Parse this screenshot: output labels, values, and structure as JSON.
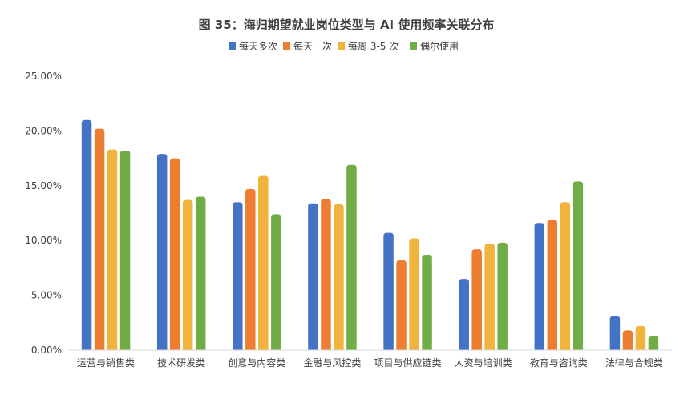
{
  "chart_data": {
    "type": "bar",
    "title": "图 35：海归期望就业岗位类型与 AI 使用频率关联分布",
    "xlabel": "",
    "ylabel": "",
    "categories": [
      "运营与销售类",
      "技术研发类",
      "创意与内容类",
      "金融与风控类",
      "项目与供应链类",
      "人资与培训类",
      "教育与咨询类",
      "法律与合规类"
    ],
    "series": [
      {
        "name": "每天多次",
        "color": "#4472C4",
        "values": [
          21.0,
          17.9,
          13.5,
          13.4,
          10.7,
          6.5,
          11.6,
          3.1
        ]
      },
      {
        "name": "每天一次",
        "color": "#ED7D31",
        "values": [
          20.2,
          17.5,
          14.7,
          13.8,
          8.2,
          9.2,
          11.9,
          1.8
        ]
      },
      {
        "name": "每周 3-5 次",
        "color": "#F0B43C",
        "values": [
          18.3,
          13.7,
          15.9,
          13.3,
          10.2,
          9.7,
          13.5,
          2.2
        ]
      },
      {
        "name": "偶尔使用",
        "color": "#70AD47",
        "values": [
          18.2,
          14.0,
          12.4,
          16.9,
          8.7,
          9.8,
          15.4,
          1.3
        ]
      }
    ],
    "ylim": [
      0,
      25
    ],
    "ytick_values": [
      0,
      5,
      10,
      15,
      20,
      25
    ],
    "ytick_labels": [
      "0.00%",
      "5.00%",
      "10.00%",
      "15.00%",
      "20.00%",
      "25.00%"
    ],
    "grid": false,
    "legend_position": "top-center"
  }
}
